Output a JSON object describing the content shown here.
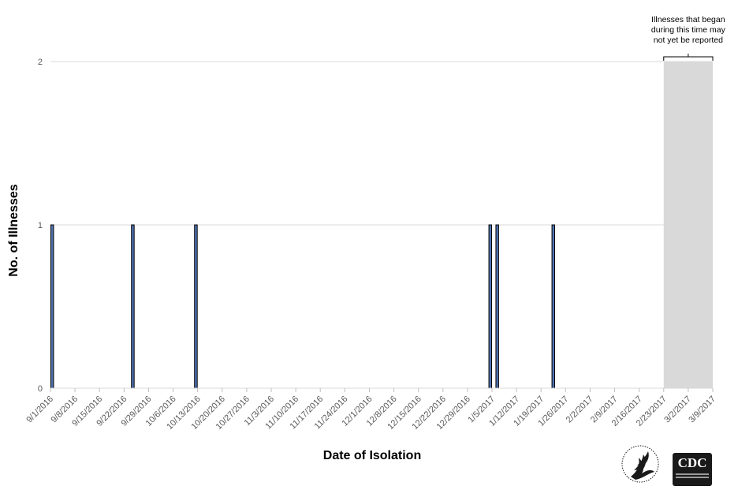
{
  "chart_data": {
    "type": "bar",
    "xlabel": "Date of Isolation",
    "ylabel": "No. of Illnesses",
    "ylim": [
      0,
      2
    ],
    "yticks": [
      0,
      1,
      2
    ],
    "grid": true,
    "bar_color": "#4f73b0",
    "x_tick_labels": [
      "9/1/2016",
      "9/8/2016",
      "9/15/2016",
      "9/22/2016",
      "9/29/2016",
      "10/6/2016",
      "10/13/2016",
      "10/20/2016",
      "10/27/2016",
      "11/3/2016",
      "11/10/2016",
      "11/17/2016",
      "11/24/2016",
      "12/1/2016",
      "12/8/2016",
      "12/15/2016",
      "12/22/2016",
      "12/29/2016",
      "1/5/2017",
      "1/12/2017",
      "1/19/2017",
      "1/26/2017",
      "2/2/2017",
      "2/9/2017",
      "2/16/2017",
      "2/23/2017",
      "3/2/2017",
      "3/9/2017"
    ],
    "bars": [
      {
        "date": "9/1/2016",
        "value": 1
      },
      {
        "date": "9/24/2016",
        "value": 1
      },
      {
        "date": "10/12/2016",
        "value": 1
      },
      {
        "date": "1/4/2017",
        "value": 1
      },
      {
        "date": "1/6/2017",
        "value": 1
      },
      {
        "date": "1/22/2017",
        "value": 1
      }
    ],
    "shaded_region": {
      "start": "2/23/2017",
      "end": "3/9/2017",
      "color": "#d9d9d9",
      "annotation": [
        "Illnesses that began",
        "during this time may",
        "not yet be reported"
      ]
    }
  },
  "logos": {
    "cdc_text": "CDC",
    "hhs_icon": "hhs-eagle-icon"
  }
}
